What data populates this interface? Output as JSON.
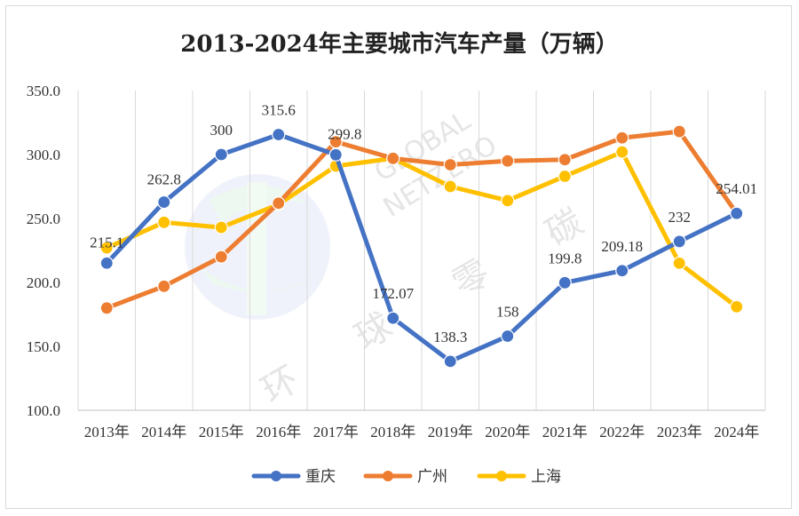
{
  "chart_data": {
    "type": "line",
    "title": "2013-2024年主要城市汽车产量（万辆）",
    "categories": [
      "2013年",
      "2014年",
      "2015年",
      "2016年",
      "2017年",
      "2018年",
      "2019年",
      "2020年",
      "2021年",
      "2022年",
      "2023年",
      "2024年"
    ],
    "ylim": [
      100,
      350
    ],
    "yticks": [
      "100.0",
      "150.0",
      "200.0",
      "250.0",
      "300.0",
      "350.0"
    ],
    "grid": "vertical",
    "legend_position": "bottom",
    "series": [
      {
        "name": "重庆",
        "color": "#4472C4",
        "values": [
          215.1,
          262.8,
          300,
          315.6,
          299.8,
          172.07,
          138.3,
          158,
          199.8,
          209.18,
          232,
          254.01
        ],
        "labels": [
          "215.1",
          "262.8",
          "300",
          "315.6",
          "299.8",
          "172.07",
          "138.3",
          "158",
          "199.8",
          "209.18",
          "232",
          "254.01"
        ]
      },
      {
        "name": "广州",
        "color": "#ED7D31",
        "values": [
          180,
          197,
          220,
          262,
          310,
          297,
          292,
          295,
          296,
          313,
          318,
          254
        ]
      },
      {
        "name": "上海",
        "color": "#FFC000",
        "values": [
          227,
          247,
          243,
          261,
          291,
          297,
          275,
          264,
          283,
          302,
          215,
          181
        ]
      }
    ]
  },
  "watermark": {
    "latin_1": "GLOBAL",
    "latin_2": "NETZERO",
    "cn_1": "环",
    "cn_2": "球",
    "cn_3": "零",
    "cn_4": "碳"
  }
}
